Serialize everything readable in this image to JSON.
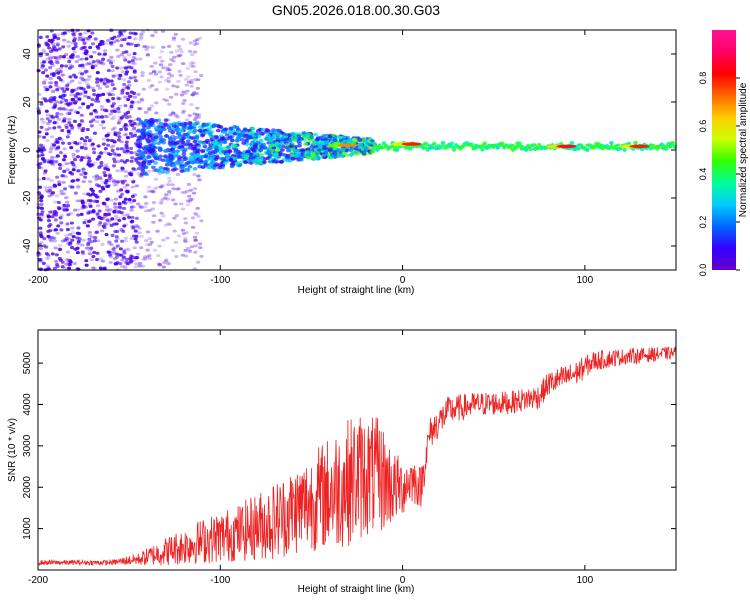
{
  "figure_title": "GN05.2026.018.00.30.G03",
  "colors": {
    "snr_line": "#ee2222",
    "axis": "#000000",
    "spectrogram_band": "#00c8ff",
    "colorbar_stops": [
      "#6600cc",
      "#3300ff",
      "#0066ff",
      "#00ccff",
      "#00ff99",
      "#33ff00",
      "#ccff00",
      "#ffcc00",
      "#ff6600",
      "#ff0000",
      "#ff0066",
      "#ff1493"
    ]
  },
  "chart_data": [
    {
      "type": "heatmap",
      "name": "spectrogram",
      "xlabel": "Height of straight line (km)",
      "ylabel": "Frequency (Hz)",
      "xlim": [
        -200,
        150
      ],
      "ylim": [
        -50,
        50
      ],
      "x_ticks": [
        -200,
        -100,
        0,
        100
      ],
      "x_tick_labels": [
        "-200",
        "-100",
        "0",
        "100"
      ],
      "y_ticks": [
        -40,
        -20,
        0,
        20,
        40
      ],
      "y_tick_labels": [
        "-40",
        "-20",
        "0",
        "20",
        "40"
      ],
      "colorbar": {
        "label": "Normalized spectral amplitude",
        "range": [
          0,
          1
        ],
        "ticks": [
          0.0,
          0.2,
          0.4,
          0.6,
          0.8
        ],
        "tick_labels": [
          "0.0",
          "0.2",
          "0.4",
          "0.6",
          "0.8"
        ]
      },
      "description_points": {
        "center_frequency_hz": 1.5,
        "noise_region_km": [
          -200,
          -120
        ],
        "dispersed_band_km": [
          -145,
          -15
        ],
        "narrow_line_km": [
          -15,
          150
        ],
        "hot_spots": [
          {
            "x": -30,
            "y": 2,
            "amp": 0.7
          },
          {
            "x": 5,
            "y": 2.5,
            "amp": 0.8
          },
          {
            "x": 90,
            "y": 1.5,
            "amp": 0.85
          },
          {
            "x": 130,
            "y": 1.5,
            "amp": 0.8
          }
        ]
      }
    },
    {
      "type": "line",
      "name": "snr",
      "xlabel": "Height of straight line (km)",
      "ylabel": "SNR (10 * v/v)",
      "xlim": [
        -200,
        150
      ],
      "ylim": [
        0,
        5800
      ],
      "x_ticks": [
        -200,
        -100,
        0,
        100
      ],
      "x_tick_labels": [
        "-200",
        "-100",
        "0",
        "100"
      ],
      "y_ticks": [
        1000,
        2000,
        3000,
        4000,
        5000
      ],
      "y_tick_labels": [
        "1000",
        "2000",
        "3000",
        "4000",
        "5000"
      ],
      "envelope": {
        "x": [
          -200,
          -160,
          -145,
          -130,
          -110,
          -90,
          -70,
          -50,
          -35,
          -25,
          -20,
          -12,
          -5,
          0,
          5,
          10,
          15,
          25,
          40,
          60,
          75,
          80,
          95,
          105,
          120,
          135,
          150
        ],
        "mean": [
          180,
          180,
          260,
          450,
          700,
          900,
          1200,
          1650,
          2000,
          2250,
          2300,
          2250,
          2000,
          2000,
          2200,
          2000,
          3300,
          3850,
          4000,
          4050,
          4200,
          4500,
          4750,
          5050,
          5150,
          5200,
          5250
        ],
        "amplitude": [
          60,
          60,
          150,
          350,
          550,
          700,
          950,
          1200,
          1500,
          1600,
          1500,
          1400,
          900,
          700,
          600,
          500,
          400,
          350,
          300,
          280,
          300,
          300,
          300,
          250,
          200,
          180,
          150
        ]
      }
    }
  ]
}
